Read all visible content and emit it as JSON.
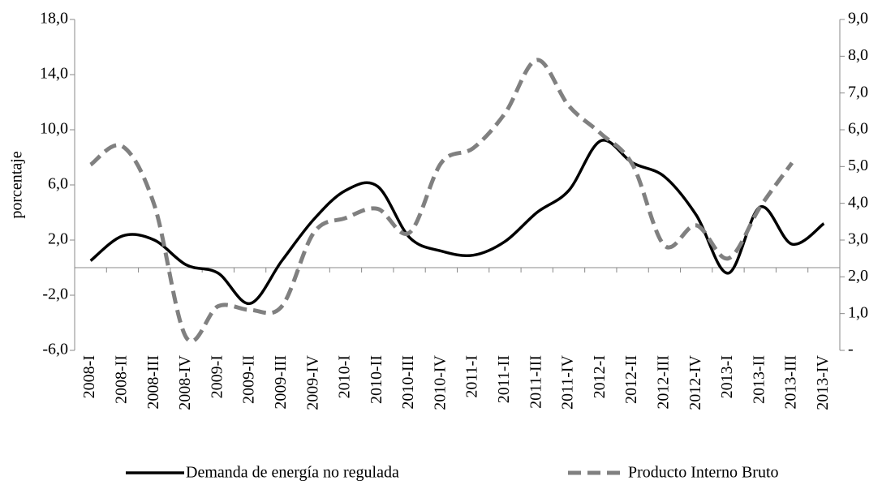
{
  "chart_data": {
    "type": "line",
    "y_label": "porcentaje",
    "categories": [
      "2008-I",
      "2008-II",
      "2008-III",
      "2008-IV",
      "2009-I",
      "2009-II",
      "2009-III",
      "2009-IV",
      "2010-I",
      "2010-II",
      "2010-III",
      "2010-IV",
      "2011-I",
      "2011-II",
      "2011-III",
      "2011-IV",
      "2012-I",
      "2012-II",
      "2012-III",
      "2012-IV",
      "2013-I",
      "2013-II",
      "2013-III",
      "2013-IV"
    ],
    "series": [
      {
        "name": "Demanda de energía no regulada",
        "color": "#000000",
        "dash": false,
        "axis": "y",
        "values": [
          0.5,
          2.3,
          2.0,
          0.2,
          -0.4,
          -2.6,
          0.5,
          3.5,
          5.6,
          5.9,
          2.2,
          1.2,
          0.9,
          1.9,
          4.0,
          5.6,
          9.2,
          7.6,
          6.6,
          3.8,
          -0.4,
          4.4,
          1.7,
          3.2
        ]
      },
      {
        "name": "Producto Interno Bruto",
        "color": "#808080",
        "dash": true,
        "axis": "y2",
        "values": [
          5.05,
          5.55,
          3.95,
          0.35,
          1.2,
          1.1,
          1.2,
          3.2,
          3.6,
          3.85,
          3.2,
          5.1,
          5.5,
          6.45,
          7.9,
          6.65,
          5.9,
          5.05,
          2.85,
          3.4,
          2.5,
          3.9,
          5.1,
          null
        ]
      }
    ],
    "ylim": [
      -6,
      18
    ],
    "yticks": [
      {
        "value": -6,
        "label": "-6,0"
      },
      {
        "value": -2,
        "label": "-2,0"
      },
      {
        "value": 2,
        "label": "2,0"
      },
      {
        "value": 6,
        "label": "6,0"
      },
      {
        "value": 10,
        "label": "10,0"
      },
      {
        "value": 14,
        "label": "14,0"
      },
      {
        "value": 18,
        "label": "18,0"
      }
    ],
    "y2lim": [
      0,
      9
    ],
    "y2ticks": [
      {
        "value": 0,
        "label": "-"
      },
      {
        "value": 1,
        "label": "1,0"
      },
      {
        "value": 2,
        "label": "2,0"
      },
      {
        "value": 3,
        "label": "3,0"
      },
      {
        "value": 4,
        "label": "4,0"
      },
      {
        "value": 5,
        "label": "5,0"
      },
      {
        "value": 6,
        "label": "6,0"
      },
      {
        "value": 7,
        "label": "7,0"
      },
      {
        "value": 8,
        "label": "8,0"
      },
      {
        "value": 9,
        "label": "9,0"
      }
    ],
    "legend": "bottom"
  }
}
